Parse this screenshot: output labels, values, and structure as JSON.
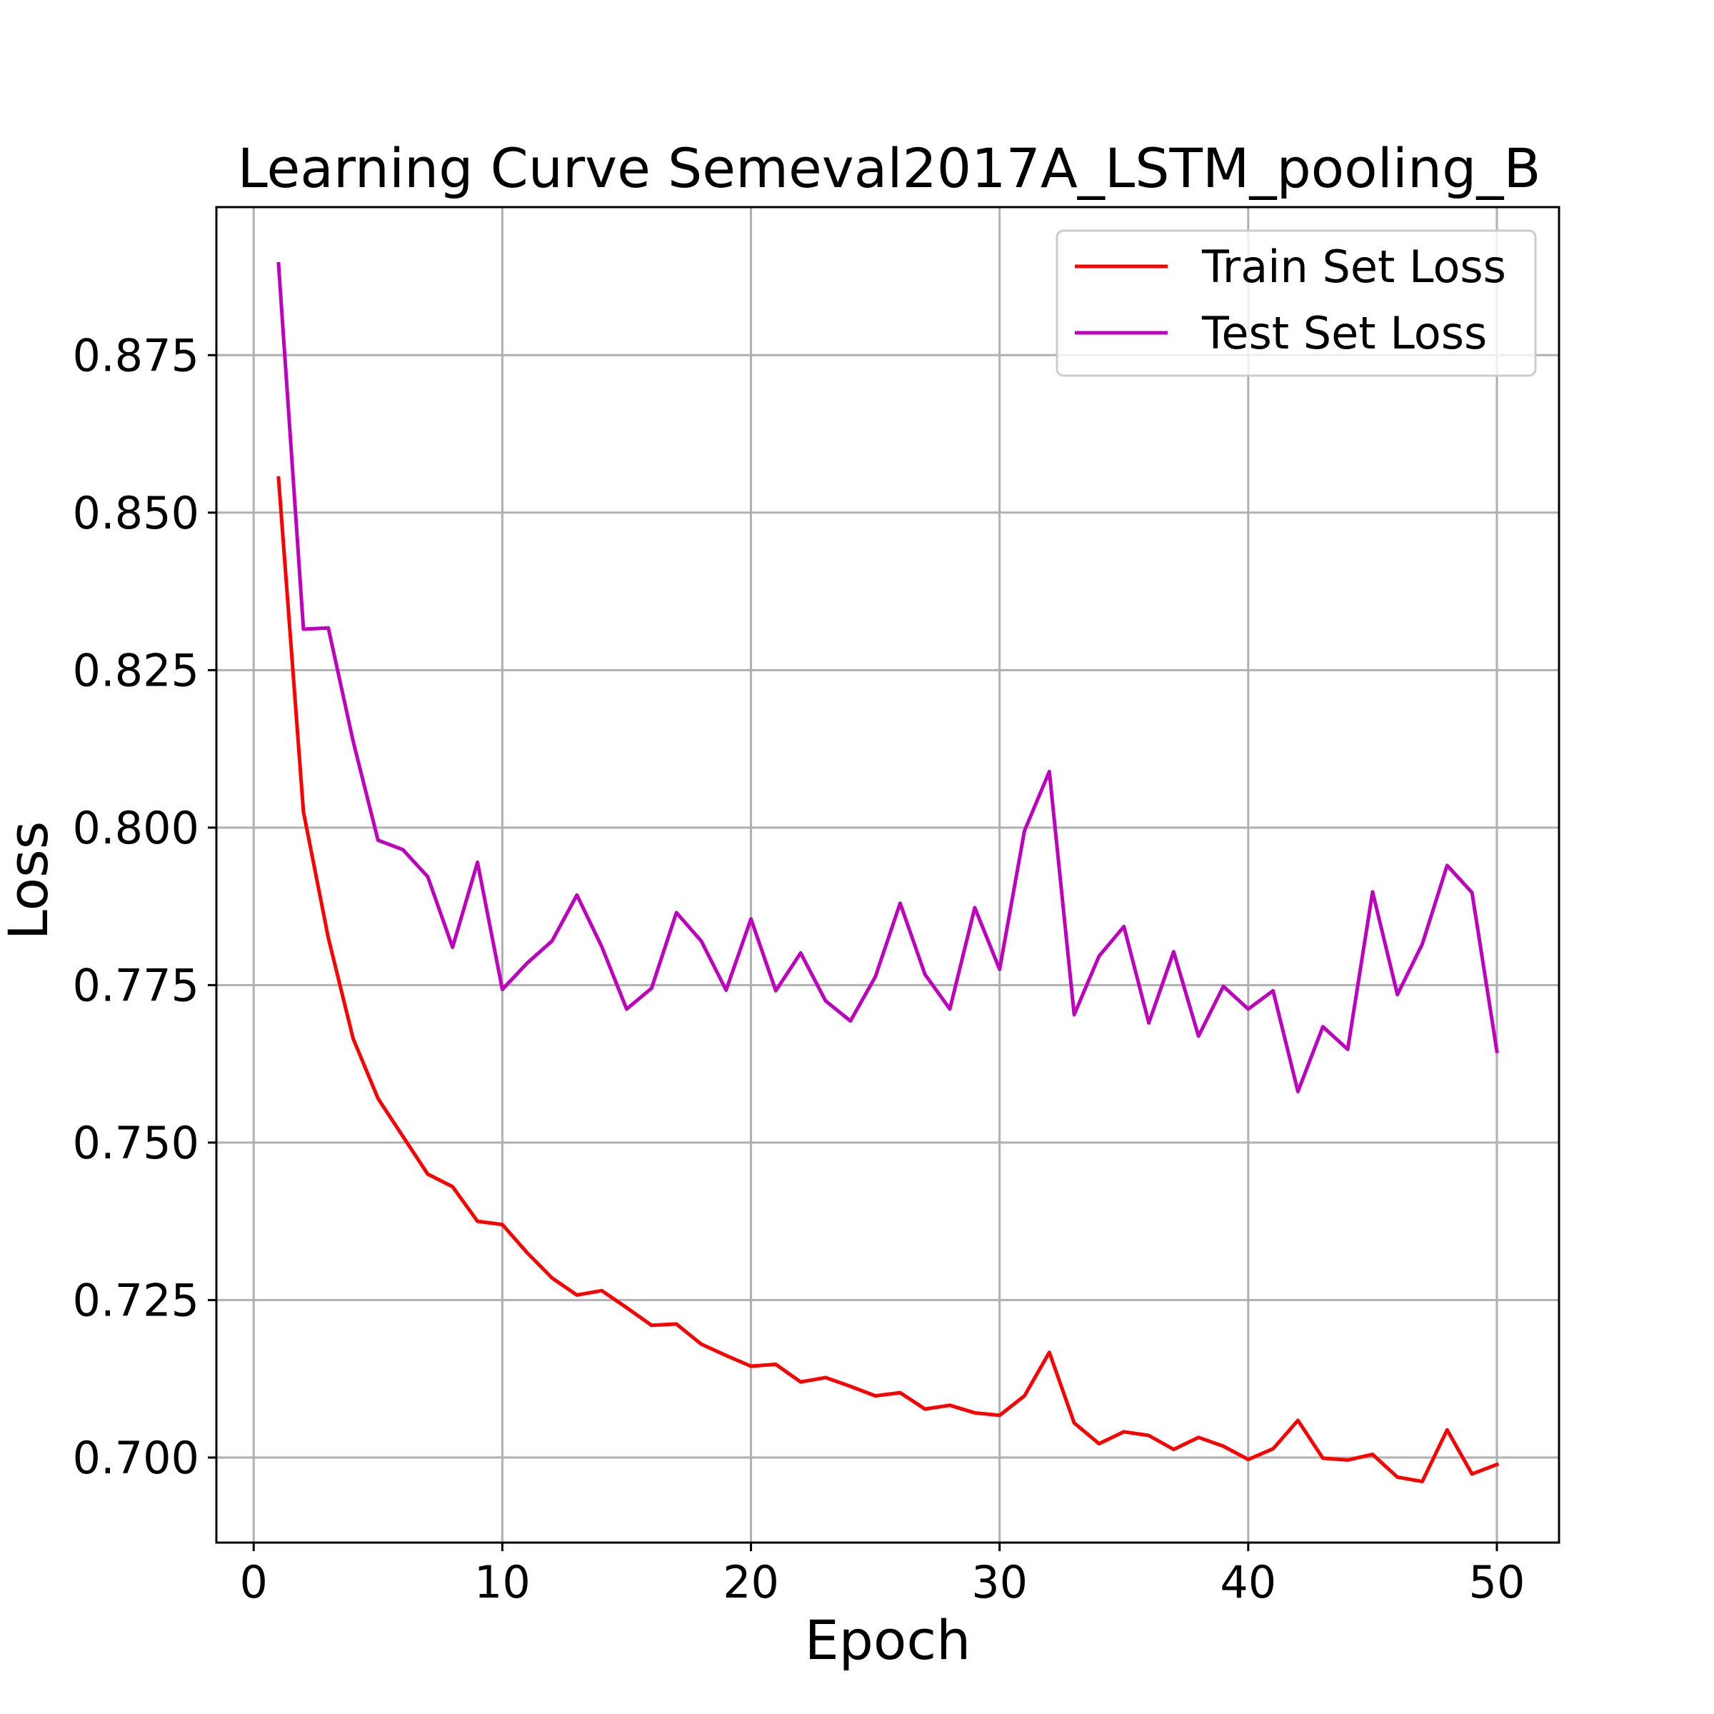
{
  "chart_data": {
    "type": "line",
    "title": "Learning Curve Semeval2017A_LSTM_pooling_B",
    "xlabel": "Epoch",
    "ylabel": "Loss",
    "xlim": [
      -1.5,
      52.5
    ],
    "ylim": [
      0.6865,
      0.8985
    ],
    "xticks": [
      0,
      10,
      20,
      30,
      40,
      50
    ],
    "xtick_labels": [
      "0",
      "10",
      "20",
      "30",
      "40",
      "50"
    ],
    "yticks": [
      0.7,
      0.725,
      0.75,
      0.775,
      0.8,
      0.825,
      0.85,
      0.875
    ],
    "ytick_labels": [
      "0.700",
      "0.725",
      "0.750",
      "0.775",
      "0.800",
      "0.825",
      "0.850",
      "0.875"
    ],
    "grid": true,
    "legend_position": "top-right",
    "x": [
      1,
      2,
      3,
      4,
      5,
      6,
      7,
      8,
      9,
      10,
      11,
      12,
      13,
      14,
      15,
      16,
      17,
      18,
      19,
      20,
      21,
      22,
      23,
      24,
      25,
      26,
      27,
      28,
      29,
      30,
      31,
      32,
      33,
      34,
      35,
      36,
      37,
      38,
      39,
      40,
      41,
      42,
      43,
      44,
      45,
      46,
      47,
      48,
      49,
      50
    ],
    "series": [
      {
        "name": "Train Set Loss",
        "color": "#ff0000",
        "values": [
          0.8555,
          0.8025,
          0.7825,
          0.7665,
          0.757,
          0.751,
          0.745,
          0.743,
          0.7375,
          0.737,
          0.7325,
          0.7285,
          0.7258,
          0.7265,
          0.7238,
          0.721,
          0.7212,
          0.718,
          0.7162,
          0.7145,
          0.7148,
          0.712,
          0.7127,
          0.7113,
          0.7098,
          0.7103,
          0.7077,
          0.7083,
          0.7071,
          0.7067,
          0.7098,
          0.7167,
          0.7055,
          0.7022,
          0.7041,
          0.7035,
          0.7013,
          0.7032,
          0.7018,
          0.6997,
          0.7014,
          0.7059,
          0.6999,
          0.6996,
          0.7005,
          0.6969,
          0.6962,
          0.7044,
          0.6974,
          0.6989
        ]
      },
      {
        "name": "Test Set Loss",
        "color": "#bf00bf",
        "values": [
          0.8895,
          0.8315,
          0.8317,
          0.8137,
          0.798,
          0.7965,
          0.7922,
          0.781,
          0.7945,
          0.7743,
          0.7785,
          0.782,
          0.7893,
          0.7811,
          0.7712,
          0.7745,
          0.7865,
          0.782,
          0.7742,
          0.7855,
          0.7741,
          0.7801,
          0.7725,
          0.7693,
          0.7763,
          0.788,
          0.7767,
          0.7712,
          0.7873,
          0.7775,
          0.7995,
          0.8089,
          0.7703,
          0.7796,
          0.7843,
          0.769,
          0.7803,
          0.7669,
          0.7748,
          0.7712,
          0.7741,
          0.7581,
          0.7684,
          0.7648,
          0.7898,
          0.7735,
          0.7815,
          0.794,
          0.7897,
          0.7645
        ]
      }
    ]
  }
}
